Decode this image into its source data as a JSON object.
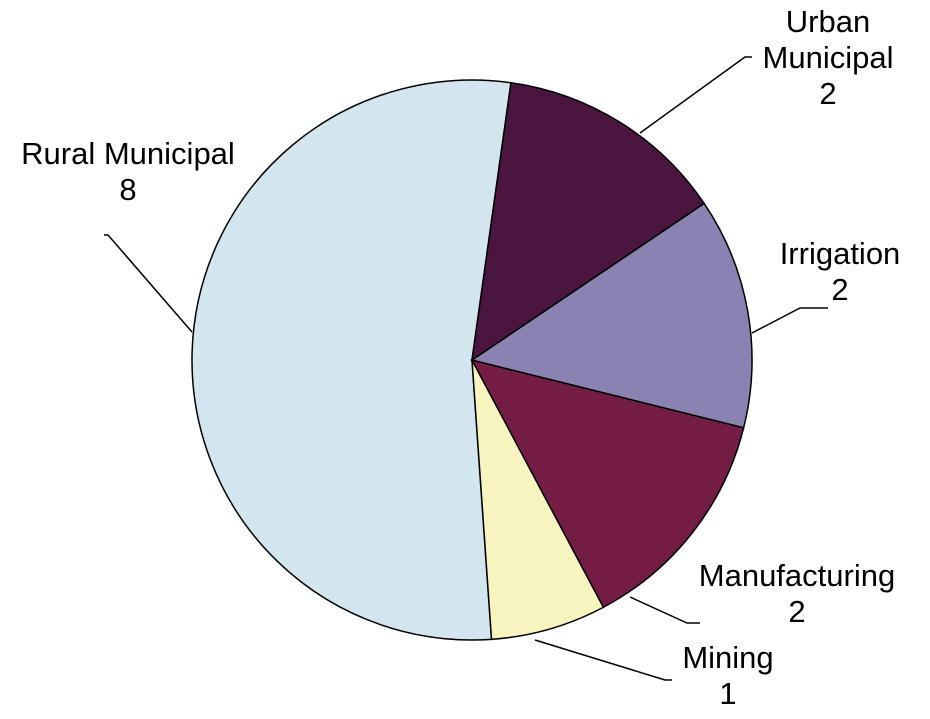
{
  "chart_data": {
    "type": "pie",
    "categories": [
      "Urban Municipal",
      "Irrigation",
      "Manufacturing",
      "Mining",
      "Rural Municipal"
    ],
    "values": [
      2,
      2,
      2,
      1,
      8
    ],
    "colors": [
      "#4a1640",
      "#8a82b0",
      "#731d45",
      "#f7f4bf",
      "#d3e6ef"
    ]
  }
}
